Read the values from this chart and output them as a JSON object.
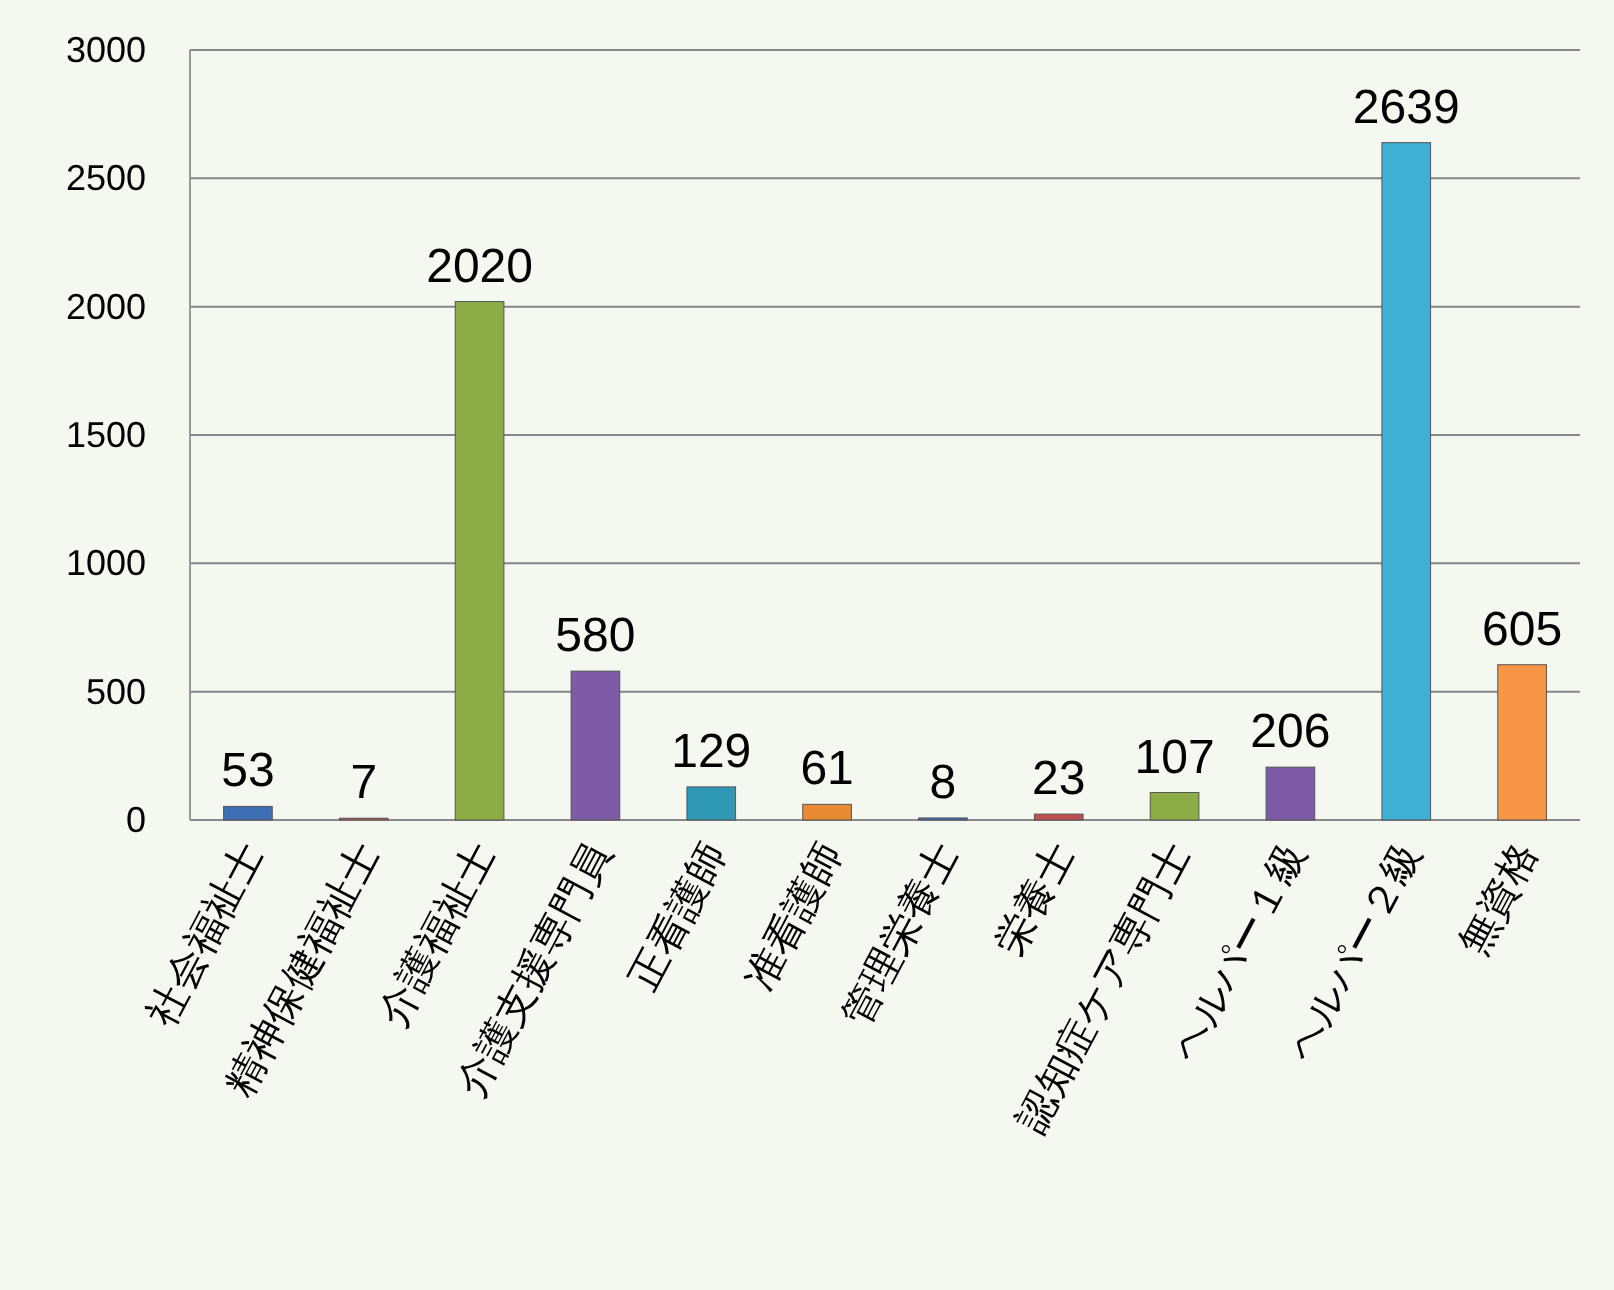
{
  "chart_data": {
    "type": "bar",
    "categories": [
      "社会福祉士",
      "精神保健福祉士",
      "介護福祉士",
      "介護支援専門員",
      "正看護師",
      "准看護師",
      "管理栄養士",
      "栄養士",
      "認知症ケア専門士",
      "ヘルパー１級",
      "ヘルパー２級",
      "無資格"
    ],
    "values": [
      53,
      7,
      2020,
      580,
      129,
      61,
      8,
      23,
      107,
      206,
      2639,
      605
    ],
    "colors": [
      "#3d6db5",
      "#c0504d",
      "#8cac46",
      "#7d5ba6",
      "#2f98b5",
      "#e98b32",
      "#3d6db5",
      "#c0504d",
      "#8cac46",
      "#7d5ba6",
      "#3fb0d4",
      "#f79646"
    ],
    "ylim": [
      0,
      3000
    ],
    "yticks": [
      0,
      500,
      1000,
      1500,
      2000,
      2500,
      3000
    ],
    "grid": "y",
    "data_labels": true
  }
}
